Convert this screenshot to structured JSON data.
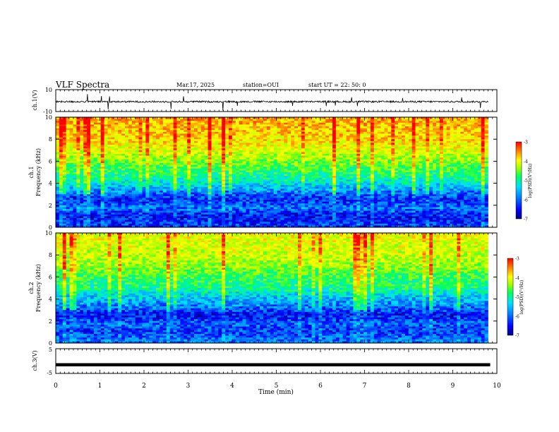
{
  "header": {
    "title": "VLF Spectra",
    "date": "Mar.17, 2025",
    "station": "station=OUI",
    "start": "start UT =  22: 50: 0"
  },
  "chart_data": [
    {
      "type": "line",
      "panel": "ch1-waveform",
      "ylabel": "ch.1(V)",
      "ylim": [
        -10,
        10
      ],
      "yticks": [
        "10",
        "-10"
      ],
      "x": [
        0,
        1,
        2,
        3,
        4,
        5,
        6,
        7,
        8,
        9,
        9.8
      ],
      "values": [
        -1,
        -1,
        -1,
        -1,
        -1,
        -1,
        -1,
        -1,
        -1,
        -1,
        -1
      ]
    },
    {
      "type": "heatmap",
      "panel": "ch1-spectrogram",
      "ylabel_line1": "ch.1",
      "ylabel_line2": "Frequency (kHz)",
      "ylim": [
        0,
        10
      ],
      "yticks": [
        "0",
        "2",
        "4",
        "6",
        "8",
        "10"
      ],
      "xlim": [
        0,
        9.8
      ],
      "freq_kHz": [
        0.3,
        1.0,
        1.8,
        2.5,
        3.3,
        4.2,
        5.0,
        6.0,
        7.0,
        8.0,
        9.0,
        9.8
      ],
      "log_psd_level": [
        -6.3,
        -6.5,
        -6.0,
        -6.4,
        -5.9,
        -5.3,
        -5.0,
        -4.6,
        -4.2,
        -3.9,
        -3.8,
        -3.7
      ],
      "colorbar": {
        "label": "log(PSD)(V²/Hz)",
        "range": [
          -7,
          -3
        ],
        "ticks": [
          "-3",
          "-4",
          "-5",
          "-6",
          "-7"
        ]
      }
    },
    {
      "type": "heatmap",
      "panel": "ch2-spectrogram",
      "ylabel_line1": "ch.2",
      "ylabel_line2": "Frequency (kHz)",
      "ylim": [
        0,
        10
      ],
      "yticks": [
        "0",
        "2",
        "4",
        "6",
        "8",
        "10"
      ],
      "xlim": [
        0,
        9.8
      ],
      "freq_kHz": [
        0.3,
        1.0,
        1.8,
        2.5,
        3.3,
        4.2,
        5.0,
        6.0,
        7.0,
        8.0,
        9.0,
        9.8
      ],
      "log_psd_level": [
        -6.0,
        -6.3,
        -6.1,
        -6.5,
        -6.0,
        -5.6,
        -5.1,
        -4.9,
        -4.5,
        -4.3,
        -4.2,
        -4.1
      ],
      "colorbar": {
        "label": "log(PSD)(V²/Hz)",
        "range": [
          -7,
          -3
        ],
        "ticks": [
          "-3",
          "-4",
          "-5",
          "-6",
          "-7"
        ]
      }
    },
    {
      "type": "line",
      "panel": "ch3-waveform",
      "ylabel": "ch.3(V)",
      "ylim": [
        -5,
        5
      ],
      "yticks": [
        "5",
        "-5"
      ],
      "x": [
        0,
        9.8
      ],
      "values": [
        -1.5,
        -1.5
      ]
    }
  ],
  "xaxis": {
    "label": "Time (min)",
    "range": [
      0,
      10
    ],
    "ticks": [
      "0",
      "1",
      "2",
      "3",
      "4",
      "5",
      "6",
      "7",
      "8",
      "9",
      "10"
    ]
  },
  "colors": {
    "spectrum": [
      "#000080",
      "#0000ff",
      "#0080ff",
      "#00e0ff",
      "#00ff60",
      "#a0ff00",
      "#ffff00",
      "#ff8000",
      "#ff0000"
    ]
  }
}
